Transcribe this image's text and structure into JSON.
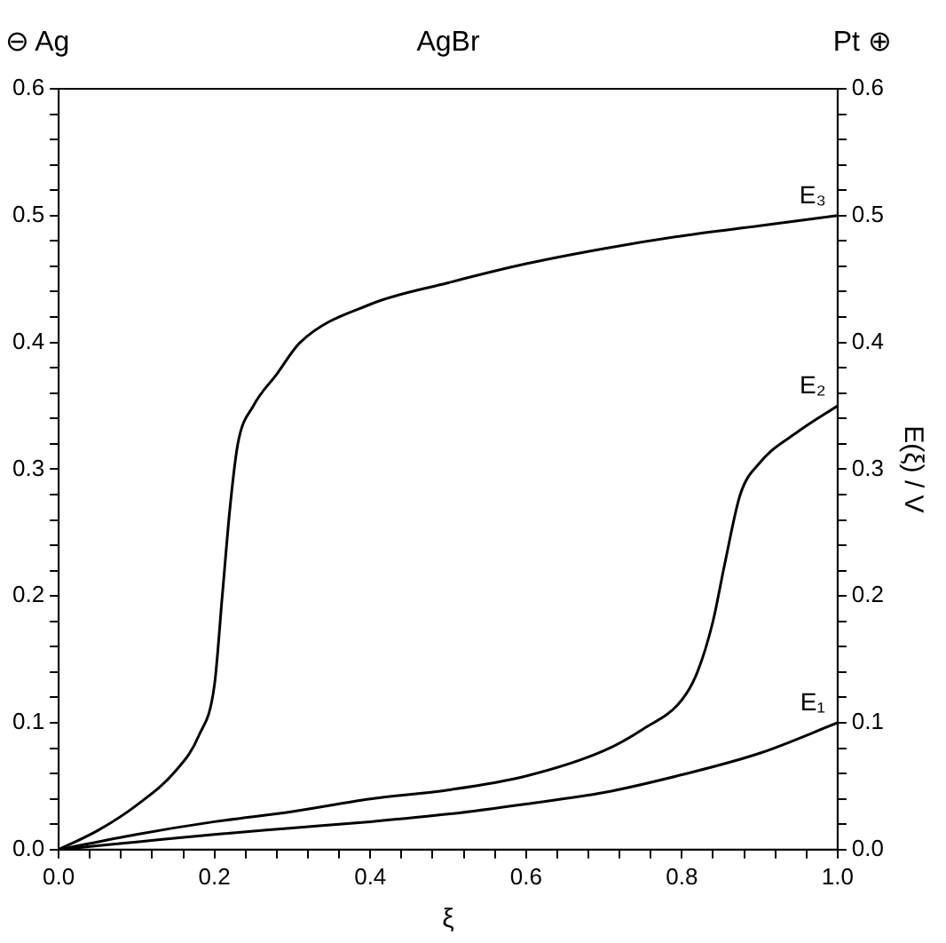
{
  "chart_data": {
    "type": "line",
    "xlabel": "ξ",
    "y2label": "E(ξ) / V",
    "annotations": [
      "⊖ Ag",
      "AgBr",
      "Pt ⊕"
    ],
    "series": [
      {
        "name": "E₃",
        "color": "#000000",
        "x": [
          0,
          0.05,
          0.1,
          0.15,
          0.18,
          0.2,
          0.21,
          0.22,
          0.23,
          0.25,
          0.28,
          0.31,
          0.4,
          0.5,
          0.6,
          0.7,
          0.8,
          0.9,
          1
        ],
        "values": [
          0,
          0.015,
          0.035,
          0.062,
          0.09,
          0.13,
          0.2,
          0.27,
          0.32,
          0.35,
          0.375,
          0.4,
          0.43,
          0.447,
          0.462,
          0.474,
          0.484,
          0.492,
          0.5
        ]
      },
      {
        "name": "E₂",
        "color": "#000000",
        "x": [
          0,
          0.1,
          0.2,
          0.3,
          0.4,
          0.5,
          0.6,
          0.7,
          0.75,
          0.8,
          0.82,
          0.84,
          0.855,
          0.875,
          0.9,
          0.95,
          1
        ],
        "values": [
          0,
          0.012,
          0.022,
          0.03,
          0.04,
          0.047,
          0.058,
          0.078,
          0.095,
          0.118,
          0.14,
          0.18,
          0.225,
          0.28,
          0.305,
          0.33,
          0.35
        ]
      },
      {
        "name": "E₁",
        "color": "#000000",
        "x": [
          0,
          0.1,
          0.2,
          0.3,
          0.4,
          0.5,
          0.6,
          0.7,
          0.8,
          0.9,
          1
        ],
        "values": [
          0,
          0.006,
          0.012,
          0.017,
          0.022,
          0.028,
          0.036,
          0.045,
          0.059,
          0.076,
          0.1
        ]
      }
    ],
    "xlim": [
      0,
      1
    ],
    "xticks": [
      {
        "value": 0,
        "label": "0.0"
      },
      {
        "value": 0.04,
        "label": null
      },
      {
        "value": 0.08,
        "label": null
      },
      {
        "value": 0.12,
        "label": null
      },
      {
        "value": 0.16,
        "label": null
      },
      0.2,
      {
        "value": 0.24,
        "label": null
      },
      {
        "value": 0.28,
        "label": null
      },
      {
        "value": 0.32,
        "label": null
      },
      {
        "value": 0.36,
        "label": null
      },
      0.4,
      {
        "value": 0.44,
        "label": null
      },
      {
        "value": 0.48,
        "label": null
      },
      {
        "value": 0.52,
        "label": null
      },
      {
        "value": 0.56,
        "label": null
      },
      0.6,
      {
        "value": 0.64,
        "label": null
      },
      {
        "value": 0.68,
        "label": null
      },
      {
        "value": 0.72,
        "label": null
      },
      {
        "value": 0.76,
        "label": null
      },
      0.8,
      {
        "value": 0.84,
        "label": null
      },
      {
        "value": 0.88,
        "label": null
      },
      {
        "value": 0.92,
        "label": null
      },
      {
        "value": 0.96,
        "label": null
      },
      {
        "value": 1,
        "label": "1.0"
      }
    ],
    "ylim": [
      0,
      0.6
    ],
    "yticks": [
      {
        "value": 0,
        "label": "0.0"
      },
      {
        "value": 0.02,
        "label": null
      },
      {
        "value": 0.04,
        "label": null
      },
      {
        "value": 0.06,
        "label": null
      },
      {
        "value": 0.08,
        "label": null
      },
      0.1,
      {
        "value": 0.12,
        "label": null
      },
      {
        "value": 0.14,
        "label": null
      },
      {
        "value": 0.16,
        "label": null
      },
      {
        "value": 0.18,
        "label": null
      },
      0.2,
      {
        "value": 0.22,
        "label": null
      },
      {
        "value": 0.24,
        "label": null
      },
      {
        "value": 0.26,
        "label": null
      },
      {
        "value": 0.28,
        "label": null
      },
      0.3,
      {
        "value": 0.32,
        "label": null
      },
      {
        "value": 0.34,
        "label": null
      },
      {
        "value": 0.36,
        "label": null
      },
      {
        "value": 0.38,
        "label": null
      },
      0.4,
      {
        "value": 0.42,
        "label": null
      },
      {
        "value": 0.44,
        "label": null
      },
      {
        "value": 0.46,
        "label": null
      },
      {
        "value": 0.48,
        "label": null
      },
      0.5,
      {
        "value": 0.52,
        "label": null
      },
      {
        "value": 0.54,
        "label": null
      },
      {
        "value": 0.56,
        "label": null
      },
      {
        "value": 0.58,
        "label": null
      },
      0.6
    ],
    "y2lim": [
      0,
      0.6
    ],
    "y2ticks": [
      {
        "value": 0,
        "label": "0.0"
      },
      {
        "value": 0.02,
        "label": null
      },
      {
        "value": 0.04,
        "label": null
      },
      {
        "value": 0.06,
        "label": null
      },
      {
        "value": 0.08,
        "label": null
      },
      0.1,
      {
        "value": 0.12,
        "label": null
      },
      {
        "value": 0.14,
        "label": null
      },
      {
        "value": 0.16,
        "label": null
      },
      {
        "value": 0.18,
        "label": null
      },
      0.2,
      {
        "value": 0.22,
        "label": null
      },
      {
        "value": 0.24,
        "label": null
      },
      {
        "value": 0.26,
        "label": null
      },
      {
        "value": 0.28,
        "label": null
      },
      0.3,
      {
        "value": 0.32,
        "label": null
      },
      {
        "value": 0.34,
        "label": null
      },
      {
        "value": 0.36,
        "label": null
      },
      {
        "value": 0.38,
        "label": null
      },
      0.4,
      {
        "value": 0.42,
        "label": null
      },
      {
        "value": 0.44,
        "label": null
      },
      {
        "value": 0.46,
        "label": null
      },
      {
        "value": 0.48,
        "label": null
      },
      0.5,
      {
        "value": 0.52,
        "label": null
      },
      {
        "value": 0.54,
        "label": null
      },
      {
        "value": 0.56,
        "label": null
      },
      {
        "value": 0.58,
        "label": null
      },
      0.6
    ],
    "grid": false,
    "legend": false
  }
}
